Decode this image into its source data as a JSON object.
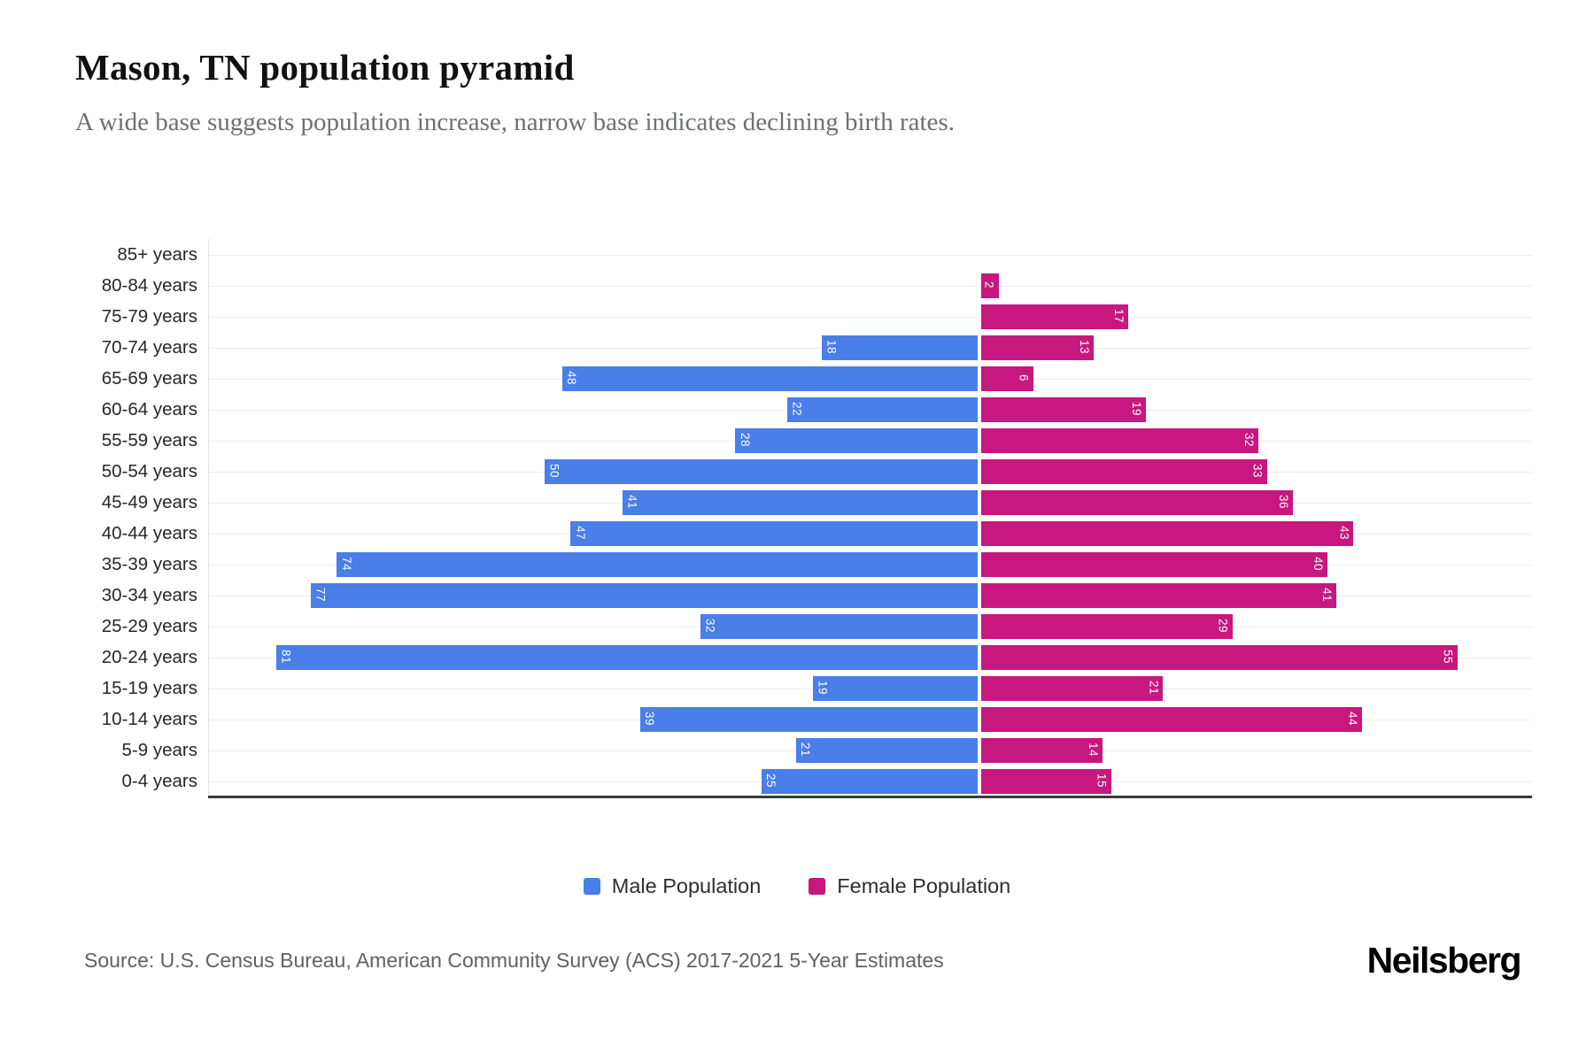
{
  "header": {
    "title": "Mason, TN population pyramid",
    "subtitle": "A wide base suggests population increase, narrow base indicates declining birth rates."
  },
  "chart_data": {
    "type": "bar",
    "subtype": "population-pyramid",
    "title": "Mason, TN population pyramid",
    "categories": [
      "85+ years",
      "80-84 years",
      "75-79 years",
      "70-74 years",
      "65-69 years",
      "60-64 years",
      "55-59 years",
      "50-54 years",
      "45-49 years",
      "40-44 years",
      "35-39 years",
      "30-34 years",
      "25-29 years",
      "20-24 years",
      "15-19 years",
      "10-14 years",
      "5-9 years",
      "0-4 years"
    ],
    "series": [
      {
        "name": "Male Population",
        "side": "left",
        "color": "#4A7EE8",
        "values": [
          0,
          0,
          0,
          18,
          48,
          22,
          28,
          50,
          41,
          47,
          74,
          77,
          32,
          81,
          19,
          39,
          21,
          25
        ]
      },
      {
        "name": "Female Population",
        "side": "right",
        "color": "#C6187E",
        "values": [
          0,
          2,
          17,
          13,
          6,
          19,
          32,
          33,
          36,
          43,
          40,
          41,
          29,
          55,
          21,
          44,
          14,
          15
        ]
      }
    ],
    "axis": {
      "center_pct": 58.26,
      "pct_per_unit": 0.654
    },
    "grid": true,
    "legend_position": "bottom-center",
    "value_label_color": "#ffffff"
  },
  "footer": {
    "source": "Source: U.S. Census Bureau, American Community Survey (ACS) 2017-2021 5-Year Estimates",
    "brand": "Neilsberg"
  }
}
